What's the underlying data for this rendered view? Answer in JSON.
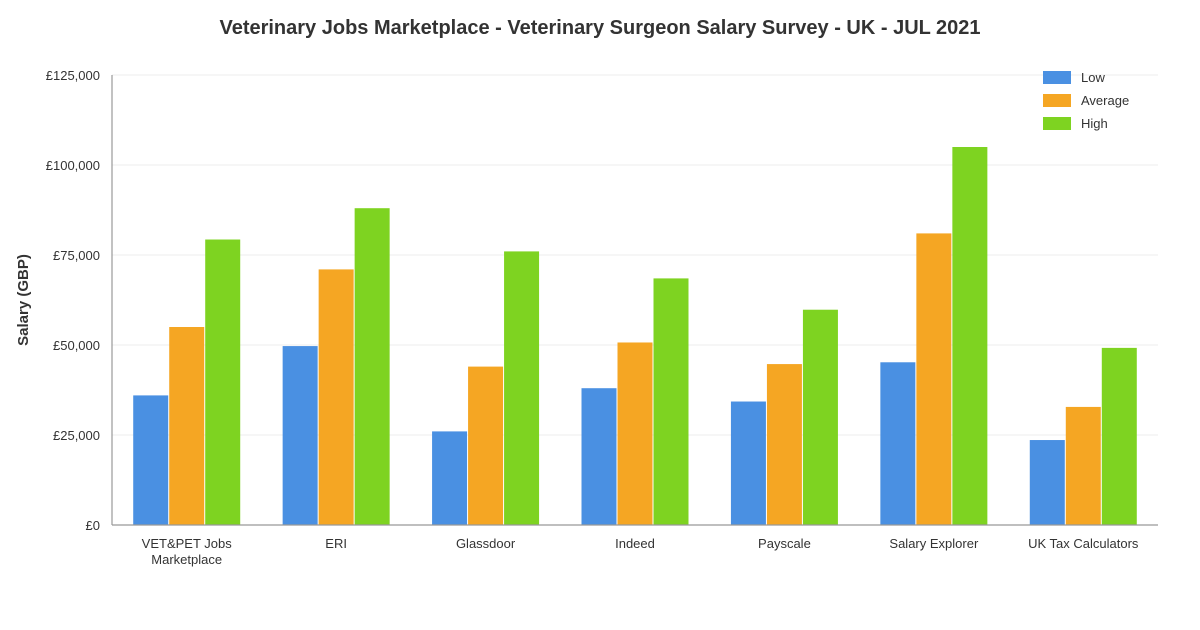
{
  "chart_data": {
    "type": "bar",
    "title": "Veterinary Jobs Marketplace - Veterinary Surgeon Salary Survey - UK - JUL 2021",
    "xlabel": "",
    "ylabel": "Salary (GBP)",
    "ylim": [
      0,
      125000
    ],
    "yticks": [
      0,
      25000,
      50000,
      75000,
      100000,
      125000
    ],
    "ytick_labels": [
      "£0",
      "£25,000",
      "£50,000",
      "£75,000",
      "£100,000",
      "£125,000"
    ],
    "grid": true,
    "legend_position": "top-right",
    "categories": [
      [
        "VET&PET Jobs",
        "Marketplace"
      ],
      [
        "ERI"
      ],
      [
        "Glassdoor"
      ],
      [
        "Indeed"
      ],
      [
        "Payscale"
      ],
      [
        "Salary Explorer"
      ],
      [
        "UK Tax Calculators"
      ]
    ],
    "series": [
      {
        "name": "Low",
        "color": "#4a90e2",
        "values": [
          36000,
          49700,
          26000,
          38000,
          34300,
          45200,
          23600
        ]
      },
      {
        "name": "Average",
        "color": "#f5a623",
        "values": [
          55000,
          71000,
          44000,
          50700,
          44700,
          81000,
          32800
        ]
      },
      {
        "name": "High",
        "color": "#7ed321",
        "values": [
          79300,
          88000,
          76000,
          68500,
          59800,
          105000,
          49200
        ]
      }
    ]
  }
}
